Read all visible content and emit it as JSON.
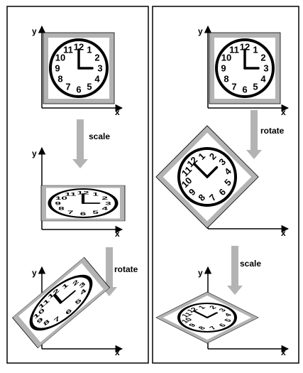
{
  "axis_labels": {
    "x": "x",
    "y": "y"
  },
  "clock_numbers": [
    "12",
    "1",
    "2",
    "3",
    "4",
    "5",
    "6",
    "7",
    "8",
    "9",
    "10",
    "11"
  ],
  "left_panel": {
    "step1_label": "scale",
    "step2_label": "rotate"
  },
  "right_panel": {
    "step1_label": "rotate",
    "step2_label": "scale"
  },
  "colors": {
    "frame_gray": "#b3b3b3",
    "arrow_gray": "#b3b3b3",
    "line": "#000000"
  }
}
